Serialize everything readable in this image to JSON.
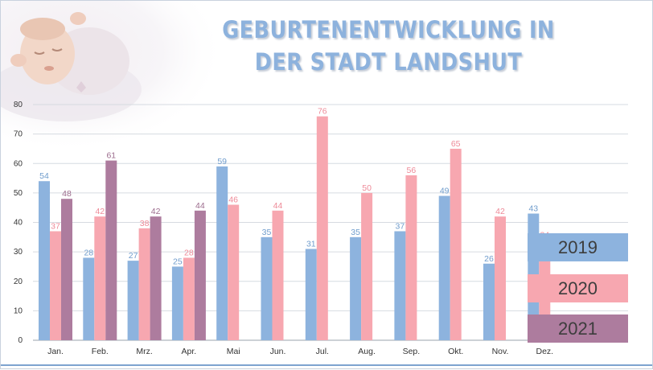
{
  "title_lines": [
    "GEBURTENENTWICKLUNG IN",
    "DER STADT LANDSHUT"
  ],
  "chart_data": {
    "type": "bar",
    "categories": [
      "Jan.",
      "Feb.",
      "Mrz.",
      "Apr.",
      "Mai",
      "Jun.",
      "Jul.",
      "Aug.",
      "Sep.",
      "Okt.",
      "Nov.",
      "Dez."
    ],
    "series": [
      {
        "name": "2019",
        "color": "#8db3de",
        "label_color": "#6f9ccc",
        "values": [
          54,
          28,
          27,
          25,
          59,
          35,
          31,
          35,
          37,
          49,
          26,
          43
        ]
      },
      {
        "name": "2020",
        "color": "#f7a7b0",
        "label_color": "#ee8a98",
        "values": [
          37,
          42,
          38,
          28,
          46,
          44,
          76,
          50,
          56,
          65,
          42,
          34
        ]
      },
      {
        "name": "2021",
        "color": "#ad7c9e",
        "label_color": "#9c6c8d",
        "values": [
          48,
          61,
          42,
          44,
          null,
          null,
          null,
          null,
          null,
          null,
          null,
          null
        ]
      }
    ],
    "yticks": [
      0,
      10,
      20,
      30,
      40,
      50,
      60,
      70,
      80
    ],
    "ylim": [
      0,
      80
    ],
    "grid": true,
    "legend_position": "right"
  }
}
